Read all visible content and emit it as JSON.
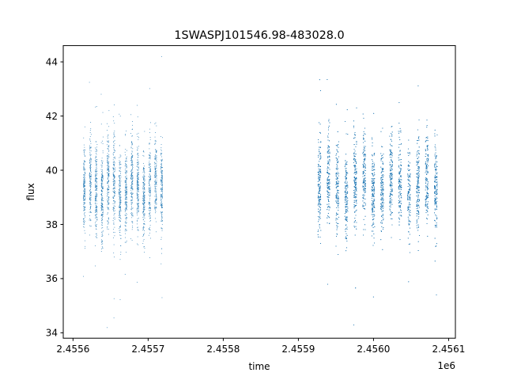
{
  "chart_data": {
    "type": "scatter",
    "title": "1SWASPJ101546.98-483028.0",
    "xlabel": "time",
    "ylabel": "flux",
    "x_offset_label": "1e6",
    "xlim": [
      2.455587,
      2.456109
    ],
    "ylim": [
      33.8,
      44.6
    ],
    "x_ticks": [
      2.4556,
      2.4557,
      2.4558,
      2.4559,
      2.456,
      2.4561
    ],
    "x_tick_labels": [
      "2.4556",
      "2.4557",
      "2.4558",
      "2.4559",
      "2.4560",
      "2.4561"
    ],
    "y_ticks": [
      34,
      36,
      38,
      40,
      42,
      44
    ],
    "y_tick_labels": [
      "34",
      "36",
      "38",
      "40",
      "42",
      "44"
    ],
    "grid": false,
    "marker_color": "#1f77b4",
    "series": [
      {
        "points_approx": 9000,
        "segments": [
          {
            "x_range": [
              2.455615,
              2.455718
            ],
            "center": 39.3,
            "spread": 1.1
          },
          {
            "x_range": [
              2.455928,
              2.456083
            ],
            "center": 39.4,
            "spread": 1.1
          }
        ]
      }
    ]
  }
}
